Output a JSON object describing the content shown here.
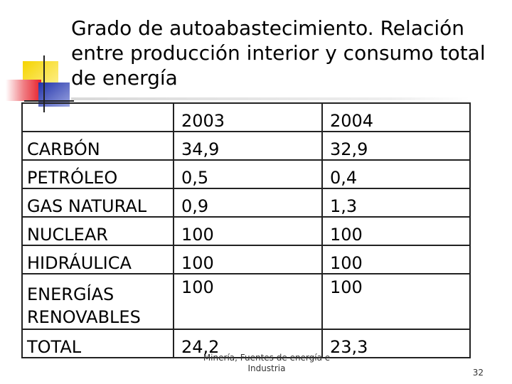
{
  "title": "Grado de autoabastecimiento. Relación entre producción interior y consumo total de energía",
  "table": {
    "headers": [
      "",
      "2003",
      "2004"
    ],
    "rows": [
      {
        "label": "CARBÓN",
        "v2003": "34,9",
        "v2004": "32,9"
      },
      {
        "label": "PETRÓLEO",
        "v2003": "0,5",
        "v2004": "0,4"
      },
      {
        "label": "GAS NATURAL",
        "v2003": "0,9",
        "v2004": "1,3"
      },
      {
        "label": "NUCLEAR",
        "v2003": "100",
        "v2004": "100"
      },
      {
        "label": "HIDRÁULICA",
        "v2003": "100",
        "v2004": "100"
      },
      {
        "label_line1": "ENERGÍAS",
        "label_line2": "RENOVABLES",
        "v2003": "100",
        "v2004": "100"
      },
      {
        "label": "TOTAL",
        "v2003": "24,2",
        "v2004": "23,3"
      }
    ]
  },
  "footer": {
    "source_line1": "Minería, Fuentes de energía e",
    "source_line2": "Industria",
    "page_number": "32"
  },
  "colors": {
    "deco_yellow": "#f5d400",
    "deco_red": "#e8202a",
    "deco_blue": "#2233aa"
  }
}
